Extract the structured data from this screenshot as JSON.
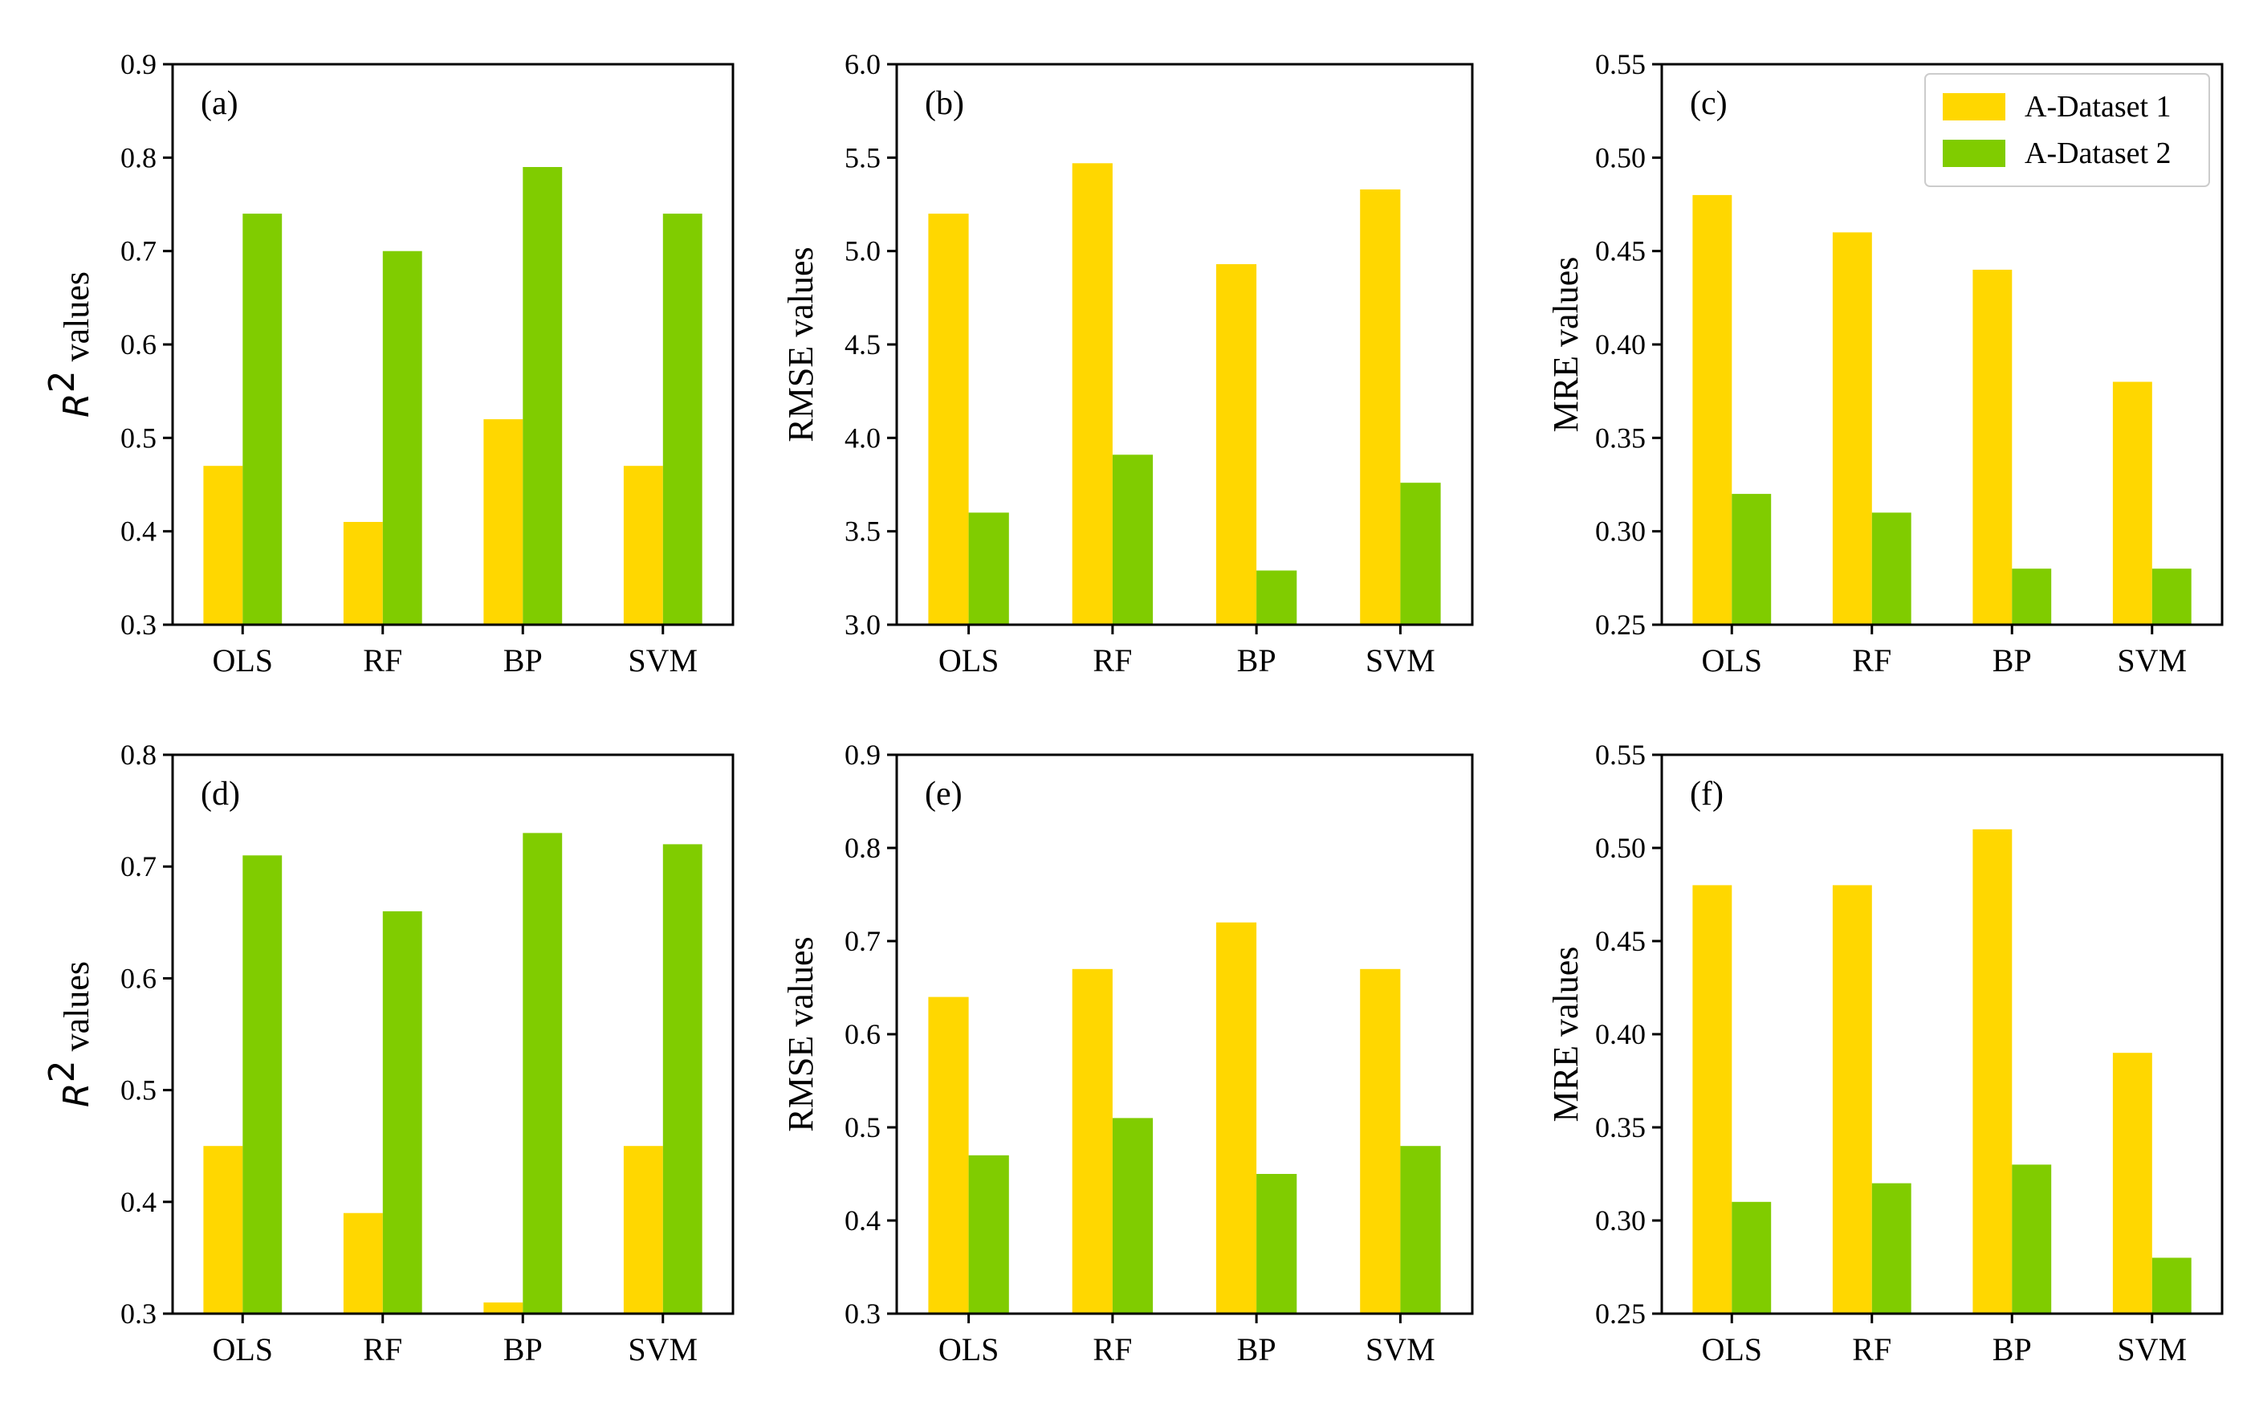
{
  "figure": {
    "palette": {
      "series1": "#FFD700",
      "series2": "#80CC00"
    }
  },
  "legend": {
    "entries": [
      {
        "label": "A-Dataset 1",
        "color": "#FFD700"
      },
      {
        "label": "A-Dataset 2",
        "color": "#80CC00"
      }
    ]
  },
  "chart_data": [
    {
      "type": "bar",
      "panel": "(a)",
      "categories": [
        "OLS",
        "RF",
        "BP",
        "SVM"
      ],
      "series": [
        {
          "name": "A-Dataset 1",
          "values": [
            0.47,
            0.41,
            0.52,
            0.47
          ]
        },
        {
          "name": "A-Dataset 2",
          "values": [
            0.74,
            0.7,
            0.79,
            0.74
          ]
        }
      ],
      "ylabel": {
        "base": "R",
        "sup": "2",
        "suffix": " values"
      },
      "ylim": [
        0.3,
        0.9
      ],
      "yticks": [
        "0.3",
        "0.4",
        "0.5",
        "0.6",
        "0.7",
        "0.8",
        "0.9"
      ]
    },
    {
      "type": "bar",
      "panel": "(b)",
      "categories": [
        "OLS",
        "RF",
        "BP",
        "SVM"
      ],
      "series": [
        {
          "name": "A-Dataset 1",
          "values": [
            5.2,
            5.47,
            4.93,
            5.33
          ]
        },
        {
          "name": "A-Dataset 2",
          "values": [
            3.6,
            3.91,
            3.29,
            3.76
          ]
        }
      ],
      "ylabel": "RMSE values",
      "ylim": [
        3.0,
        6.0
      ],
      "yticks": [
        "3.0",
        "3.5",
        "4.0",
        "4.5",
        "5.0",
        "5.5",
        "6.0"
      ]
    },
    {
      "type": "bar",
      "panel": "(c)",
      "categories": [
        "OLS",
        "RF",
        "BP",
        "SVM"
      ],
      "series": [
        {
          "name": "A-Dataset 1",
          "values": [
            0.48,
            0.46,
            0.44,
            0.38
          ]
        },
        {
          "name": "A-Dataset 2",
          "values": [
            0.32,
            0.31,
            0.28,
            0.28
          ]
        }
      ],
      "ylabel": "MRE values",
      "ylim": [
        0.25,
        0.55
      ],
      "yticks": [
        "0.25",
        "0.30",
        "0.35",
        "0.40",
        "0.45",
        "0.50",
        "0.55"
      ],
      "legend": "top-right"
    },
    {
      "type": "bar",
      "panel": "(d)",
      "categories": [
        "OLS",
        "RF",
        "BP",
        "SVM"
      ],
      "series": [
        {
          "name": "A-Dataset 1",
          "values": [
            0.45,
            0.39,
            0.31,
            0.45
          ]
        },
        {
          "name": "A-Dataset 2",
          "values": [
            0.71,
            0.66,
            0.73,
            0.72
          ]
        }
      ],
      "ylabel": {
        "base": "R",
        "sup": "2",
        "suffix": " values"
      },
      "ylim": [
        0.3,
        0.8
      ],
      "yticks": [
        "0.3",
        "0.4",
        "0.5",
        "0.6",
        "0.7",
        "0.8"
      ]
    },
    {
      "type": "bar",
      "panel": "(e)",
      "categories": [
        "OLS",
        "RF",
        "BP",
        "SVM"
      ],
      "series": [
        {
          "name": "A-Dataset 1",
          "values": [
            0.64,
            0.67,
            0.72,
            0.67
          ]
        },
        {
          "name": "A-Dataset 2",
          "values": [
            0.47,
            0.51,
            0.45,
            0.48
          ]
        }
      ],
      "ylabel": "RMSE values",
      "ylim": [
        0.3,
        0.9
      ],
      "yticks": [
        "0.3",
        "0.4",
        "0.5",
        "0.6",
        "0.7",
        "0.8",
        "0.9"
      ]
    },
    {
      "type": "bar",
      "panel": "(f)",
      "categories": [
        "OLS",
        "RF",
        "BP",
        "SVM"
      ],
      "series": [
        {
          "name": "A-Dataset 1",
          "values": [
            0.48,
            0.48,
            0.51,
            0.39
          ]
        },
        {
          "name": "A-Dataset 2",
          "values": [
            0.31,
            0.32,
            0.33,
            0.28
          ]
        }
      ],
      "ylabel": "MRE values",
      "ylim": [
        0.25,
        0.55
      ],
      "yticks": [
        "0.25",
        "0.30",
        "0.35",
        "0.40",
        "0.45",
        "0.50",
        "0.55"
      ]
    }
  ]
}
